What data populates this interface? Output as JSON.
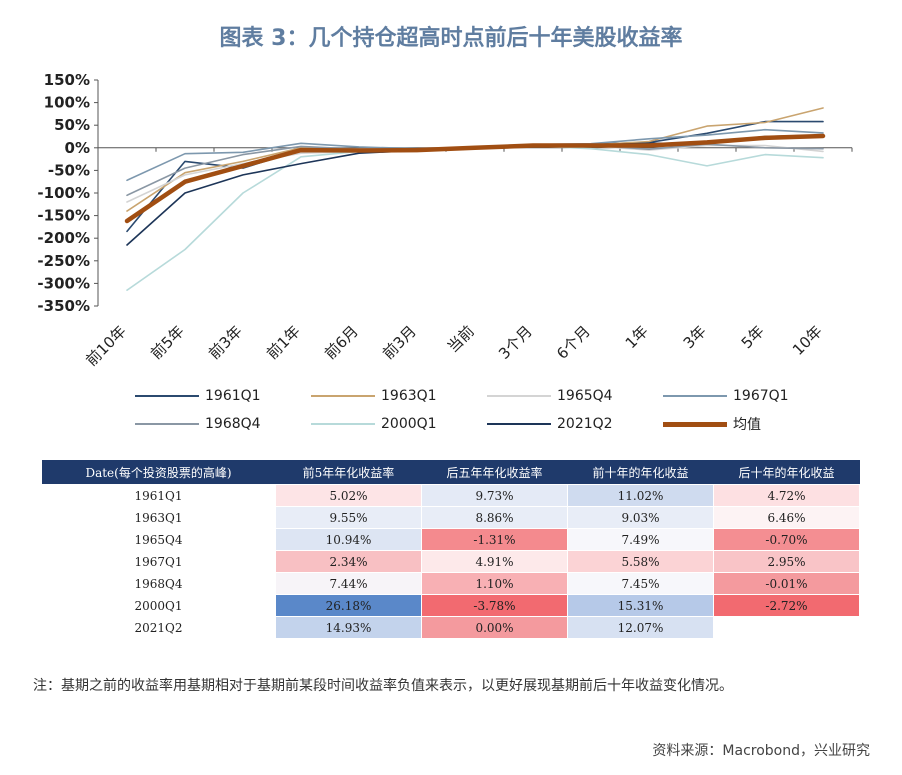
{
  "title": "图表 3：几个持仓超高时点前后十年美股收益率",
  "chart_data": {
    "type": "line",
    "title": "图表 3：几个持仓超高时点前后十年美股收益率",
    "x": [
      "前10年",
      "前5年",
      "前3年",
      "前1年",
      "前6月",
      "前3月",
      "当前",
      "3个月",
      "6个月",
      "1年",
      "3年",
      "5年",
      "10年"
    ],
    "yticks": [
      "150%",
      "100%",
      "50%",
      "0%",
      "-50%",
      "-100%",
      "-150%",
      "-200%",
      "-250%",
      "-300%",
      "-350%"
    ],
    "ylim": [
      -350,
      150
    ],
    "series": [
      {
        "name": "1961Q1",
        "color": "#2b4a6f",
        "width": 1.6,
        "values": [
          -185,
          -30,
          -45,
          -5,
          -8,
          -5,
          0,
          6,
          8,
          12,
          32,
          58,
          58
        ]
      },
      {
        "name": "1963Q1",
        "color": "#c9a46f",
        "width": 1.6,
        "values": [
          -140,
          -55,
          -30,
          0,
          -5,
          -4,
          0,
          5,
          6,
          14,
          48,
          56,
          88
        ]
      },
      {
        "name": "1965Q4",
        "color": "#d4d4d4",
        "width": 1.6,
        "values": [
          -120,
          -60,
          -35,
          -12,
          -8,
          -6,
          0,
          5,
          4,
          -5,
          5,
          5,
          -8
        ]
      },
      {
        "name": "1967Q1",
        "color": "#7d98ae",
        "width": 1.6,
        "values": [
          -72,
          -13,
          -10,
          10,
          2,
          -2,
          0,
          7,
          9,
          20,
          28,
          40,
          33
        ]
      },
      {
        "name": "1968Q4",
        "color": "#8a97a4",
        "width": 1.6,
        "values": [
          -105,
          -45,
          -15,
          3,
          -3,
          -4,
          0,
          6,
          5,
          -3,
          8,
          0,
          -2
        ]
      },
      {
        "name": "2000Q1",
        "color": "#b7dada",
        "width": 1.6,
        "values": [
          -315,
          -225,
          -100,
          -20,
          -8,
          -5,
          0,
          4,
          -2,
          -15,
          -40,
          -15,
          -22
        ]
      },
      {
        "name": "2021Q2",
        "color": "#1d3558",
        "width": 1.6,
        "values": [
          -215,
          -100,
          -60,
          -35,
          -12,
          -6,
          0,
          5,
          6,
          10,
          10,
          25,
          28
        ]
      },
      {
        "name": "均值",
        "color": "#a14e12",
        "width": 4.5,
        "values": [
          -162,
          -75,
          -40,
          -5,
          -6,
          -5,
          0,
          5,
          5,
          5,
          12,
          22,
          26
        ]
      }
    ]
  },
  "table": {
    "headers": [
      "Date(每个投资股票的高峰)",
      "前5年年化收益率",
      "后五年年化收益率",
      "前十年的年化收益",
      "后十年的年化收益"
    ],
    "rows": [
      {
        "date": "1961Q1",
        "cells": [
          {
            "text": "5.02%",
            "bg": "#fde4e6"
          },
          {
            "text": "9.73%",
            "bg": "#e4eaf6"
          },
          {
            "text": "11.02%",
            "bg": "#cfdbef"
          },
          {
            "text": "4.72%",
            "bg": "#fde0e2"
          }
        ]
      },
      {
        "date": "1963Q1",
        "cells": [
          {
            "text": "9.55%",
            "bg": "#e8edf7"
          },
          {
            "text": "8.86%",
            "bg": "#e8edf7"
          },
          {
            "text": "9.03%",
            "bg": "#e8edf7"
          },
          {
            "text": "6.46%",
            "bg": "#fdf3f4"
          }
        ]
      },
      {
        "date": "1965Q4",
        "cells": [
          {
            "text": "10.94%",
            "bg": "#dde5f3"
          },
          {
            "text": "-1.31%",
            "bg": "#f48a8e"
          },
          {
            "text": "7.49%",
            "bg": "#f7f7fb"
          },
          {
            "text": "-0.70%",
            "bg": "#f48e92"
          }
        ]
      },
      {
        "date": "1967Q1",
        "cells": [
          {
            "text": "2.34%",
            "bg": "#f8c0c3"
          },
          {
            "text": "4.91%",
            "bg": "#fde9ea"
          },
          {
            "text": "5.58%",
            "bg": "#fbd3d5"
          },
          {
            "text": "2.95%",
            "bg": "#f9c4c7"
          }
        ]
      },
      {
        "date": "1968Q4",
        "cells": [
          {
            "text": "7.44%",
            "bg": "#f7f4f8"
          },
          {
            "text": "1.10%",
            "bg": "#f8b0b4"
          },
          {
            "text": "7.45%",
            "bg": "#f7f7fb"
          },
          {
            "text": "-0.01%",
            "bg": "#f49a9e"
          }
        ]
      },
      {
        "date": "2000Q1",
        "cells": [
          {
            "text": "26.18%",
            "bg": "#5a88c9"
          },
          {
            "text": "-3.78%",
            "bg": "#f26a70"
          },
          {
            "text": "15.31%",
            "bg": "#b6c9e8"
          },
          {
            "text": "-2.72%",
            "bg": "#f26a70"
          }
        ]
      },
      {
        "date": "2021Q2",
        "cells": [
          {
            "text": "14.93%",
            "bg": "#c3d3ec"
          },
          {
            "text": "0.00%",
            "bg": "#f49a9e"
          },
          {
            "text": "12.07%",
            "bg": "#d7e1f2"
          },
          {
            "text": "",
            "bg": "#ffffff"
          }
        ]
      }
    ]
  },
  "note": "注：基期之前的收益率用基期相对于基期前某段时间收益率负值来表示，以更好展现基期前后十年收益变化情况。",
  "source": "资料来源：Macrobond，兴业研究"
}
